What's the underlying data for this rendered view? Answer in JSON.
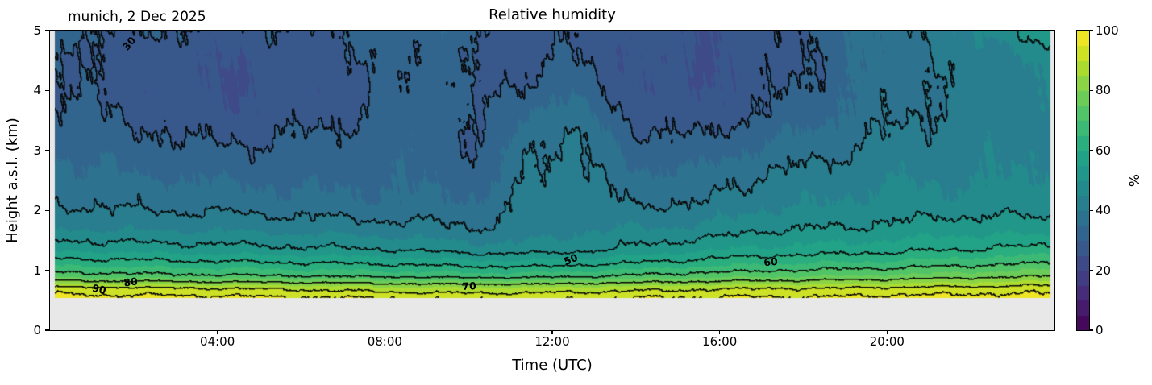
{
  "title": "Relative humidity",
  "subtitle": "munich, 2 Dec 2025",
  "axes": {
    "x": {
      "label": "Time (UTC)",
      "ticks": [
        "04:00",
        "08:00",
        "12:00",
        "16:00",
        "20:00"
      ],
      "tick_hours": [
        4,
        8,
        12,
        16,
        20
      ],
      "range_hours": [
        0,
        24
      ]
    },
    "y": {
      "label": "Height a.s.l. (km)",
      "ticks": [
        "0",
        "1",
        "2",
        "3",
        "4",
        "5"
      ],
      "tick_values": [
        0,
        1,
        2,
        3,
        4,
        5
      ],
      "range_km": [
        0,
        5
      ]
    }
  },
  "colorbar": {
    "label": "%",
    "ticks": [
      "0",
      "20",
      "40",
      "60",
      "80",
      "100"
    ],
    "tick_values": [
      0,
      20,
      40,
      60,
      80,
      100
    ],
    "range": [
      0,
      100
    ]
  },
  "contour_labels": [
    {
      "text": "30",
      "t": 1.89,
      "h": 4.78,
      "rot": -50
    },
    {
      "text": "50",
      "t": 12.44,
      "h": 1.18,
      "rot": -22
    },
    {
      "text": "60",
      "t": 17.22,
      "h": 1.14,
      "rot": -5
    },
    {
      "text": "70",
      "t": 10.02,
      "h": 0.74,
      "rot": -3
    },
    {
      "text": "80",
      "t": 1.93,
      "h": 0.81,
      "rot": -8
    },
    {
      "text": "90",
      "t": 1.17,
      "h": 0.69,
      "rot": 14
    }
  ],
  "chart_data": {
    "type": "heatmap",
    "title": "Relative humidity",
    "annotation": "munich, 2 Dec 2025",
    "xlabel": "Time (UTC)",
    "ylabel": "Height a.s.l. (km)",
    "unit": "%",
    "xlim_hours": [
      0,
      24
    ],
    "ylim_km": [
      0,
      5
    ],
    "colorbar_range": [
      0,
      100
    ],
    "fill_band_step": 5,
    "contour_line_levels": [
      30,
      40,
      50,
      60,
      70,
      80,
      90,
      95
    ],
    "colormap": "viridis",
    "colormap_stops": [
      "#440154",
      "#482475",
      "#414487",
      "#355f8d",
      "#2a788e",
      "#21918c",
      "#22a884",
      "#44bf70",
      "#7ad151",
      "#bddf26",
      "#fde725"
    ],
    "background_nodata": "#e8e8e8",
    "data_extent": {
      "t": [
        0.12,
        23.9
      ],
      "h": [
        0.54,
        5.0
      ]
    },
    "x_hours": [
      0,
      2,
      4,
      6,
      8,
      9.3,
      10.3,
      11.5,
      12.5,
      14,
      15.5,
      17,
      18.5,
      20,
      22,
      24
    ],
    "y_km": [
      0.5,
      0.7,
      0.9,
      1.1,
      1.35,
      1.7,
      2.1,
      2.6,
      3.1,
      3.6,
      4.1,
      4.6,
      5.0
    ],
    "values_rh_percent": [
      [
        98,
        98,
        98,
        97,
        97,
        96,
        96,
        96,
        96,
        97,
        97,
        97,
        97,
        98,
        98,
        98
      ],
      [
        92,
        91,
        90,
        89,
        87,
        86,
        86,
        86,
        87,
        88,
        89,
        90,
        90,
        91,
        92,
        93
      ],
      [
        73,
        72,
        71,
        70,
        69,
        68,
        68,
        68,
        69,
        71,
        73,
        74,
        75,
        76,
        78,
        80
      ],
      [
        64,
        63,
        62,
        61,
        60,
        59,
        58,
        58,
        59,
        61,
        63,
        65,
        66,
        67,
        69,
        71
      ],
      [
        54,
        53,
        52,
        51,
        50,
        48,
        47,
        47,
        48,
        51,
        54,
        56,
        57,
        58,
        60,
        62
      ],
      [
        45,
        44,
        44,
        43,
        42,
        41,
        40,
        42,
        44,
        45,
        46,
        49,
        50,
        51,
        53,
        52
      ],
      [
        40,
        39,
        38,
        37,
        36,
        36,
        36,
        42,
        43,
        40,
        40,
        44,
        45,
        47,
        47,
        48
      ],
      [
        37,
        35,
        34,
        33,
        34,
        34,
        31,
        41,
        42,
        36,
        36,
        40,
        42,
        44,
        44,
        46
      ],
      [
        34,
        32,
        30,
        31,
        33,
        33,
        29,
        40,
        41,
        32,
        31,
        35,
        38,
        41,
        43,
        45
      ],
      [
        32,
        29,
        26,
        28,
        31,
        33,
        29,
        36,
        38,
        28,
        27,
        30,
        34,
        39,
        42,
        44
      ],
      [
        30,
        28,
        25,
        26,
        30,
        33,
        28,
        31,
        33,
        26,
        25,
        28,
        32,
        38,
        41,
        45
      ],
      [
        29,
        28,
        26,
        27,
        31,
        33,
        27,
        29,
        30,
        26,
        25,
        27,
        31,
        37,
        42,
        48
      ],
      [
        31,
        30,
        29,
        29,
        32,
        34,
        29,
        28,
        28,
        27,
        26,
        28,
        32,
        38,
        45,
        54
      ]
    ]
  }
}
